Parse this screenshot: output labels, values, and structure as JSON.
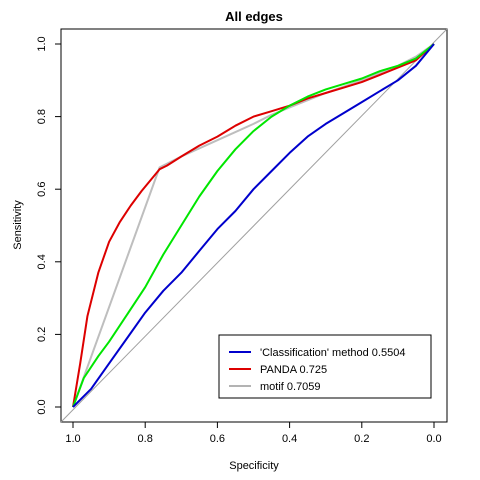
{
  "chart_data": {
    "type": "line",
    "title": "All edges",
    "xlabel": "Specificity",
    "ylabel": "Sensitivity",
    "xlim": [
      1.0,
      0.0
    ],
    "ylim": [
      0.0,
      1.0
    ],
    "x_reversed": true,
    "x_ticks": [
      {
        "v": 1.0,
        "label": "1.0"
      },
      {
        "v": 0.8,
        "label": "0.8"
      },
      {
        "v": 0.6,
        "label": "0.6"
      },
      {
        "v": 0.4,
        "label": "0.4"
      },
      {
        "v": 0.2,
        "label": "0.2"
      },
      {
        "v": 0.0,
        "label": "0.0"
      }
    ],
    "y_ticks": [
      {
        "v": 0.0,
        "label": "0.0"
      },
      {
        "v": 0.2,
        "label": "0.2"
      },
      {
        "v": 0.4,
        "label": "0.4"
      },
      {
        "v": 0.6,
        "label": "0.6"
      },
      {
        "v": 0.8,
        "label": "0.8"
      },
      {
        "v": 1.0,
        "label": "1.0"
      }
    ],
    "grid": false,
    "diagonal_reference": true,
    "legend_position": "bottom-right",
    "legend": [
      {
        "label": "'Classification' method 0.5504",
        "color": "#0000cc"
      },
      {
        "label": "PANDA 0.725",
        "color": "#dd0000"
      },
      {
        "label": "motif 0.7059",
        "color": "#b3b3b3"
      }
    ],
    "series": [
      {
        "color": "#bebebe",
        "specificity": [
          1.0,
          0.76,
          0.7,
          0.6,
          0.5,
          0.45,
          0.4,
          0.3,
          0.2,
          0.1,
          0.05,
          0.0
        ],
        "sensitivity": [
          0.0,
          0.66,
          0.69,
          0.735,
          0.78,
          0.805,
          0.825,
          0.865,
          0.9,
          0.94,
          0.965,
          1.0
        ]
      },
      {
        "color": "#dd0000",
        "specificity": [
          1.0,
          0.98,
          0.96,
          0.93,
          0.9,
          0.87,
          0.84,
          0.81,
          0.785,
          0.76,
          0.74,
          0.7,
          0.65,
          0.6,
          0.55,
          0.5,
          0.45,
          0.4,
          0.35,
          0.3,
          0.25,
          0.2,
          0.15,
          0.1,
          0.05,
          0.0
        ],
        "sensitivity": [
          0.0,
          0.12,
          0.25,
          0.37,
          0.455,
          0.51,
          0.555,
          0.595,
          0.625,
          0.655,
          0.665,
          0.69,
          0.72,
          0.745,
          0.775,
          0.8,
          0.815,
          0.83,
          0.85,
          0.865,
          0.88,
          0.895,
          0.915,
          0.935,
          0.955,
          1.0
        ]
      },
      {
        "color": "#00e600",
        "specificity": [
          1.0,
          0.97,
          0.93,
          0.9,
          0.85,
          0.8,
          0.75,
          0.7,
          0.65,
          0.6,
          0.55,
          0.5,
          0.45,
          0.4,
          0.35,
          0.3,
          0.25,
          0.2,
          0.15,
          0.1,
          0.05,
          0.0
        ],
        "sensitivity": [
          0.0,
          0.08,
          0.14,
          0.18,
          0.255,
          0.33,
          0.42,
          0.5,
          0.58,
          0.65,
          0.71,
          0.76,
          0.8,
          0.83,
          0.855,
          0.875,
          0.89,
          0.905,
          0.925,
          0.94,
          0.96,
          1.0
        ]
      },
      {
        "color": "#0000cc",
        "specificity": [
          1.0,
          0.95,
          0.9,
          0.85,
          0.8,
          0.75,
          0.7,
          0.65,
          0.6,
          0.55,
          0.5,
          0.45,
          0.4,
          0.35,
          0.3,
          0.25,
          0.2,
          0.15,
          0.1,
          0.05,
          0.0
        ],
        "sensitivity": [
          0.0,
          0.05,
          0.12,
          0.19,
          0.26,
          0.32,
          0.37,
          0.43,
          0.49,
          0.54,
          0.6,
          0.65,
          0.7,
          0.745,
          0.78,
          0.81,
          0.84,
          0.87,
          0.9,
          0.94,
          1.0
        ]
      }
    ]
  }
}
